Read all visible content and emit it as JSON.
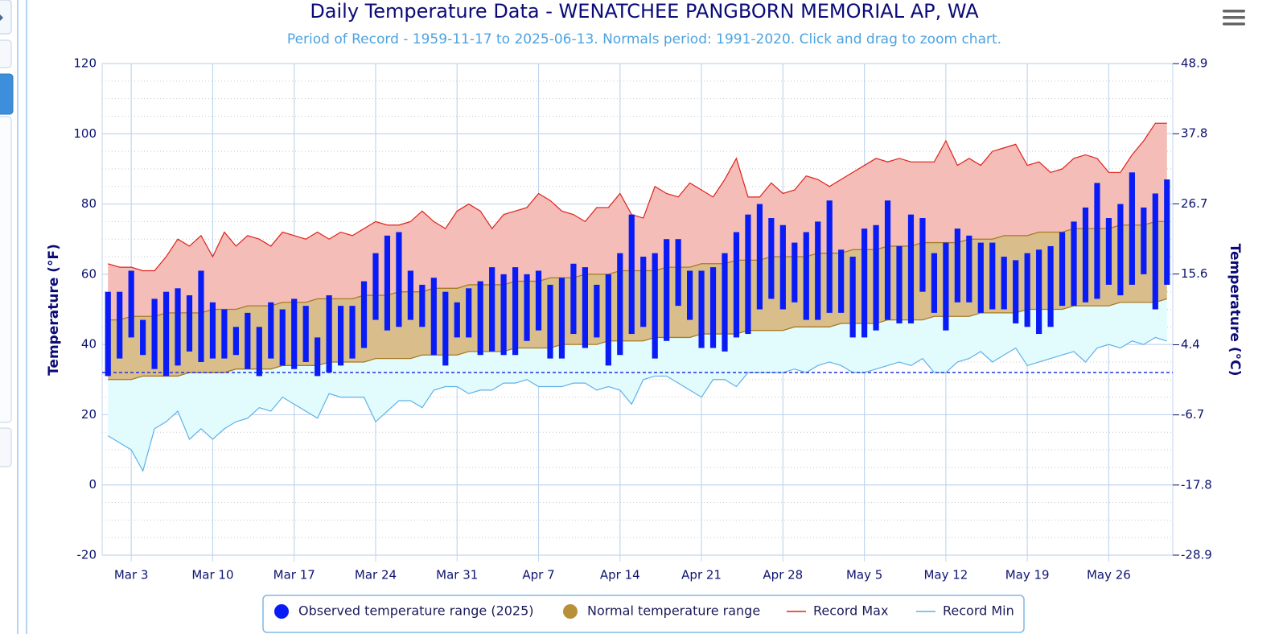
{
  "chart_data": {
    "type": "temperature-range",
    "title": "Daily Temperature Data - WENATCHEE PANGBORN MEMORIAL AP, WA",
    "subtitle": "Period of Record - 1959-11-17 to 2025-06-13. Normals period: 1991-2020. Click and drag to zoom chart.",
    "y_label": "Temperature (°F)",
    "y2_label": "Temperature (°C)",
    "categories": [
      null,
      null,
      "Mar 3",
      null,
      null,
      null,
      null,
      null,
      null,
      "Mar 10",
      null,
      null,
      null,
      null,
      null,
      null,
      "Mar 17",
      null,
      null,
      null,
      null,
      null,
      null,
      "Mar 24",
      null,
      null,
      null,
      null,
      null,
      null,
      "Mar 31",
      null,
      null,
      null,
      null,
      null,
      null,
      "Apr 7",
      null,
      null,
      null,
      null,
      null,
      null,
      "Apr 14",
      null,
      null,
      null,
      null,
      null,
      null,
      "Apr 21",
      null,
      null,
      null,
      null,
      null,
      null,
      "Apr 28",
      null,
      null,
      null,
      null,
      null,
      null,
      "May 5",
      null,
      null,
      null,
      null,
      null,
      null,
      "May 12",
      null,
      null,
      null,
      null,
      null,
      null,
      "May 19",
      null,
      null,
      null,
      null,
      null,
      null,
      "May 26",
      null,
      null,
      null,
      null,
      null
    ],
    "ylim": [
      -20,
      120
    ],
    "yticks": [
      -20,
      0,
      20,
      40,
      60,
      80,
      100,
      120
    ],
    "y2lim": [
      -28.9,
      48.9
    ],
    "y2ticks": [
      -28.9,
      -17.8,
      -6.7,
      4.4,
      15.6,
      26.7,
      37.8,
      48.9
    ],
    "grid": true,
    "minor_grid": true,
    "freezing_line": 32,
    "legend": "bottom",
    "series": [
      {
        "name": "Observed temperature range (2025)",
        "color": "#0a1cf5",
        "low": [
          31,
          36,
          42,
          37,
          33,
          31,
          34,
          38,
          35,
          36,
          36,
          37,
          33,
          31,
          36,
          34,
          33,
          35,
          31,
          32,
          34,
          36,
          39,
          47,
          44,
          45,
          47,
          45,
          37,
          34,
          42,
          42,
          37,
          38,
          37,
          37,
          41,
          44,
          36,
          36,
          43,
          39,
          42,
          34,
          37,
          43,
          45,
          36,
          41,
          51,
          47,
          39,
          39,
          38,
          42,
          43,
          50,
          53,
          50,
          52,
          47,
          47,
          49,
          49,
          42,
          42,
          44,
          47,
          46,
          46,
          55,
          49,
          44,
          52,
          52,
          49,
          50,
          50,
          46,
          45,
          43,
          45,
          51,
          51,
          52,
          53,
          57,
          54,
          57,
          60,
          50,
          57
        ],
        "high": [
          55,
          55,
          61,
          47,
          53,
          55,
          56,
          54,
          61,
          52,
          50,
          45,
          49,
          45,
          52,
          50,
          53,
          51,
          42,
          54,
          51,
          51,
          58,
          66,
          71,
          72,
          61,
          57,
          59,
          55,
          52,
          56,
          58,
          62,
          60,
          62,
          60,
          61,
          57,
          59,
          63,
          62,
          57,
          60,
          66,
          77,
          65,
          66,
          70,
          70,
          61,
          61,
          62,
          66,
          72,
          77,
          80,
          76,
          74,
          69,
          72,
          75,
          81,
          67,
          65,
          73,
          74,
          81,
          68,
          77,
          76,
          66,
          69,
          73,
          71,
          69,
          69,
          65,
          64,
          66,
          67,
          68,
          72,
          75,
          79,
          86,
          76,
          80,
          89,
          79,
          83,
          87
        ]
      },
      {
        "name": "Normal temperature range",
        "color": "#b8903a",
        "low": [
          30,
          30,
          30,
          31,
          31,
          31,
          31,
          32,
          32,
          32,
          32,
          33,
          33,
          33,
          33,
          34,
          34,
          34,
          34,
          35,
          35,
          35,
          35,
          36,
          36,
          36,
          36,
          37,
          37,
          37,
          37,
          38,
          38,
          38,
          38,
          39,
          39,
          39,
          39,
          40,
          40,
          40,
          40,
          41,
          41,
          41,
          41,
          42,
          42,
          42,
          42,
          43,
          43,
          43,
          43,
          44,
          44,
          44,
          44,
          45,
          45,
          45,
          45,
          46,
          46,
          46,
          46,
          47,
          47,
          47,
          47,
          48,
          48,
          48,
          48,
          49,
          49,
          49,
          49,
          50,
          50,
          50,
          50,
          51,
          51,
          51,
          51,
          52,
          52,
          52,
          52,
          53
        ],
        "high": [
          47,
          47,
          48,
          48,
          48,
          49,
          49,
          49,
          49,
          50,
          50,
          50,
          51,
          51,
          51,
          52,
          52,
          52,
          53,
          53,
          53,
          53,
          54,
          54,
          54,
          55,
          55,
          55,
          56,
          56,
          56,
          57,
          57,
          57,
          57,
          58,
          58,
          58,
          59,
          59,
          59,
          60,
          60,
          60,
          61,
          61,
          61,
          61,
          62,
          62,
          62,
          63,
          63,
          63,
          64,
          64,
          64,
          65,
          65,
          65,
          65,
          66,
          66,
          66,
          67,
          67,
          67,
          68,
          68,
          68,
          69,
          69,
          69,
          69,
          70,
          70,
          70,
          71,
          71,
          71,
          72,
          72,
          72,
          73,
          73,
          73,
          73,
          74,
          74,
          74,
          75,
          75
        ]
      },
      {
        "name": "Record Max",
        "color": "#e0211b",
        "values": [
          63,
          62,
          62,
          61,
          61,
          65,
          70,
          68,
          71,
          65,
          72,
          68,
          71,
          70,
          68,
          72,
          71,
          70,
          72,
          70,
          72,
          71,
          73,
          75,
          74,
          74,
          75,
          78,
          75,
          73,
          78,
          80,
          78,
          73,
          77,
          78,
          79,
          83,
          81,
          78,
          77,
          75,
          79,
          79,
          83,
          77,
          76,
          85,
          83,
          82,
          86,
          84,
          82,
          87,
          93,
          82,
          82,
          86,
          83,
          84,
          88,
          87,
          85,
          87,
          89,
          91,
          93,
          92,
          93,
          92,
          92,
          92,
          98,
          91,
          93,
          91,
          95,
          96,
          97,
          91,
          92,
          89,
          90,
          93,
          94,
          93,
          89,
          89,
          94,
          98,
          103,
          103
        ]
      },
      {
        "name": "Record Min",
        "color": "#5fb0ea",
        "values": [
          14,
          12,
          10,
          4,
          16,
          18,
          21,
          13,
          16,
          13,
          16,
          18,
          19,
          22,
          21,
          25,
          23,
          21,
          19,
          26,
          25,
          25,
          25,
          18,
          21,
          24,
          24,
          22,
          27,
          28,
          28,
          26,
          27,
          27,
          29,
          29,
          30,
          28,
          28,
          28,
          29,
          29,
          27,
          28,
          27,
          23,
          30,
          31,
          31,
          29,
          27,
          25,
          30,
          30,
          28,
          32,
          32,
          32,
          32,
          33,
          32,
          34,
          35,
          34,
          32,
          32,
          33,
          34,
          35,
          34,
          36,
          32,
          32,
          35,
          36,
          38,
          35,
          37,
          39,
          34,
          35,
          36,
          37,
          38,
          35,
          39,
          40,
          39,
          41,
          40,
          42,
          41
        ]
      }
    ]
  }
}
